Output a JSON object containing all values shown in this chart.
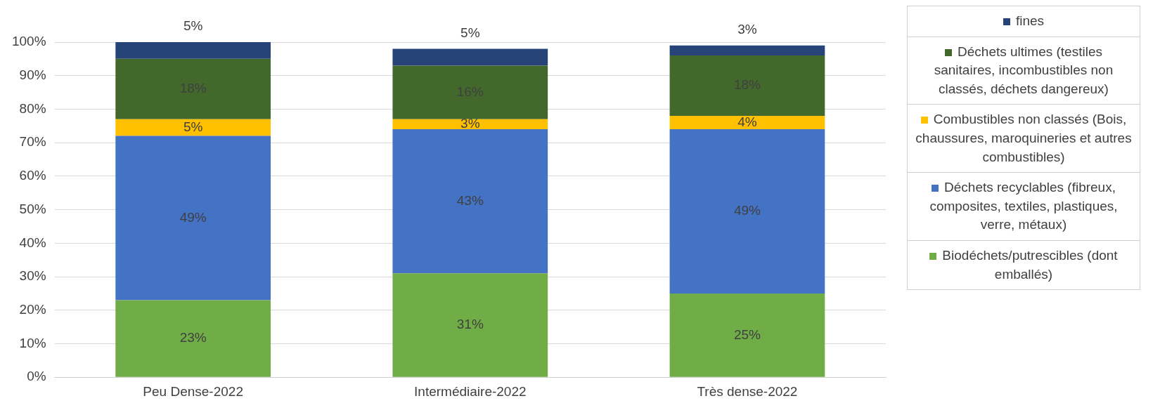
{
  "chart_data": {
    "type": "bar",
    "stacked": true,
    "categories": [
      "Peu Dense-2022",
      "Intermédiaire-2022",
      "Très dense-2022"
    ],
    "series": [
      {
        "name": "Biodéchets/putrescibles (dont emballés)",
        "color": "#70ad47",
        "values": [
          23,
          31,
          25
        ],
        "value_labels": [
          "23%",
          "31%",
          "25%"
        ]
      },
      {
        "name": "Déchets recyclables (fibreux, composites, textiles, plastiques, verre, métaux)",
        "color": "#4472c4",
        "values": [
          49,
          43,
          49
        ],
        "value_labels": [
          "49%",
          "43%",
          "49%"
        ]
      },
      {
        "name": "Combustibles non classés (Bois, chaussures, maroquineries et autres combustibles)",
        "color": "#ffc000",
        "values": [
          5,
          3,
          4
        ],
        "value_labels": [
          "5%",
          "3%",
          "4%"
        ]
      },
      {
        "name": "Déchets ultimes (testiles sanitaires, incombustibles non classés, déchets dangereux)",
        "color": "#43682b",
        "values": [
          18,
          16,
          18
        ],
        "value_labels": [
          "18%",
          "16%",
          "18%"
        ]
      },
      {
        "name": "fines",
        "color": "#264478",
        "values": [
          5,
          5,
          3
        ],
        "value_labels": [
          "5%",
          "5%",
          "3%"
        ]
      }
    ],
    "ylim": [
      0,
      100
    ],
    "yticks": [
      {
        "value": 0,
        "label": "0%"
      },
      {
        "value": 10,
        "label": "10%"
      },
      {
        "value": 20,
        "label": "20%"
      },
      {
        "value": 30,
        "label": "30%"
      },
      {
        "value": 40,
        "label": "40%"
      },
      {
        "value": 50,
        "label": "50%"
      },
      {
        "value": 60,
        "label": "60%"
      },
      {
        "value": 70,
        "label": "70%"
      },
      {
        "value": 80,
        "label": "80%"
      },
      {
        "value": 90,
        "label": "90%"
      },
      {
        "value": 100,
        "label": "100%"
      }
    ],
    "grid": "y",
    "legend": "right"
  }
}
